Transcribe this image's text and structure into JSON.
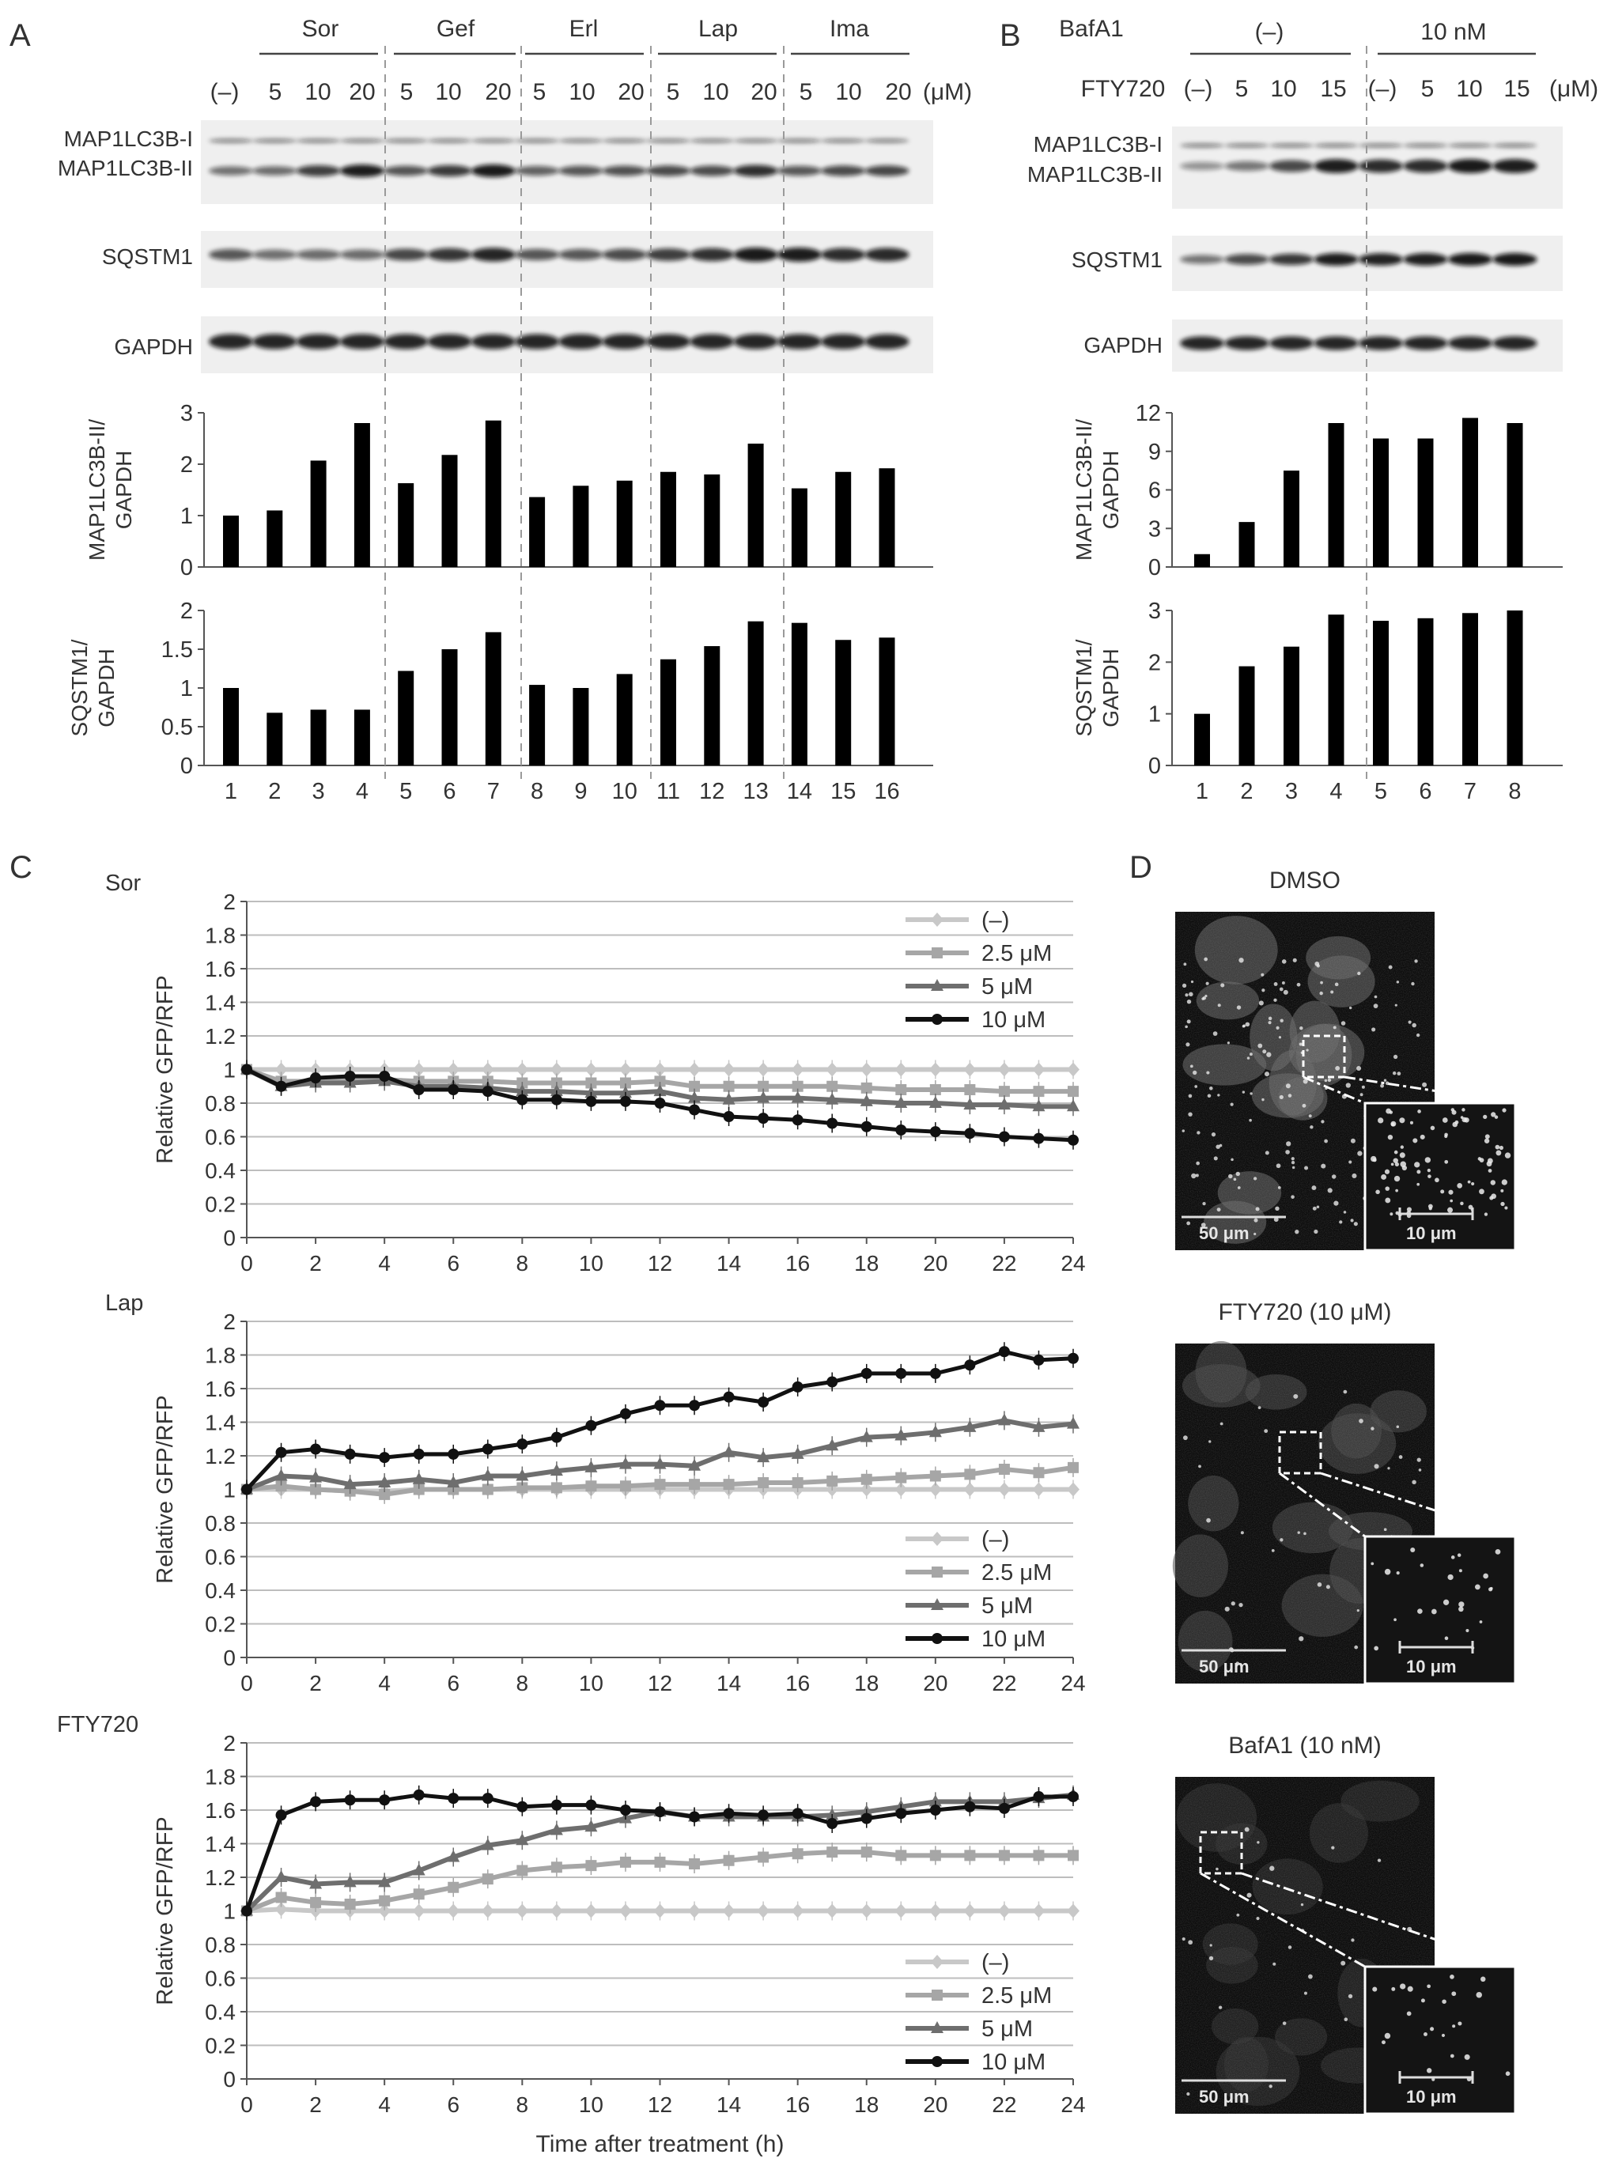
{
  "panels": {
    "A": {
      "letter": "A",
      "drug_groups": [
        {
          "name": "Sor",
          "doses": [
            "5",
            "10",
            "20"
          ]
        },
        {
          "name": "Gef",
          "doses": [
            "5",
            "10",
            "20"
          ]
        },
        {
          "name": "Erl",
          "doses": [
            "5",
            "10",
            "20"
          ]
        },
        {
          "name": "Lap",
          "doses": [
            "5",
            "10",
            "20"
          ]
        },
        {
          "name": "Ima",
          "doses": [
            "5",
            "10",
            "20"
          ]
        }
      ],
      "control_label": "(–)",
      "unit_label": "(μM)",
      "blot_labels": [
        "MAP1LC3B-I",
        "MAP1LC3B-II",
        "SQSTM1",
        "GAPDH"
      ],
      "lane_numbers": [
        "1",
        "2",
        "3",
        "4",
        "5",
        "6",
        "7",
        "8",
        "9",
        "10",
        "11",
        "12",
        "13",
        "14",
        "15",
        "16"
      ]
    },
    "B": {
      "letter": "B",
      "row1_label": "BafA1",
      "groups": [
        "(–)",
        "10 nM"
      ],
      "row2_label": "FTY720",
      "doses": [
        "(–)",
        "5",
        "10",
        "15",
        "(–)",
        "5",
        "10",
        "15"
      ],
      "unit_label": "(μM)",
      "blot_labels": [
        "MAP1LC3B-I",
        "MAP1LC3B-II",
        "SQSTM1",
        "GAPDH"
      ],
      "lane_numbers": [
        "1",
        "2",
        "3",
        "4",
        "5",
        "6",
        "7",
        "8"
      ]
    },
    "C": {
      "letter": "C",
      "legend": [
        "(–)",
        "2.5 μM",
        "5 μM",
        "10 μM"
      ],
      "xlabel": "Time after treatment (h)",
      "ylabel": "Relative GFP/RFP"
    },
    "D": {
      "letter": "D",
      "images": [
        {
          "title": "DMSO",
          "scale_main": "50 μm",
          "scale_inset": "10 μm"
        },
        {
          "title": "FTY720 (10 μM)",
          "scale_main": "50 μm",
          "scale_inset": "10 μm"
        },
        {
          "title": "BafA1 (10 nM)",
          "scale_main": "50 μm",
          "scale_inset": "10 μm"
        }
      ]
    }
  },
  "colors": {
    "series": [
      "#c8c8c8",
      "#a6a6a6",
      "#6e6e6e",
      "#111111"
    ],
    "bar": "#000000"
  },
  "chart_data": [
    {
      "type": "bar",
      "panel": "A",
      "ylabel": "MAP1LC3B-II/ GAPDH",
      "categories": [
        "1",
        "2",
        "3",
        "4",
        "5",
        "6",
        "7",
        "8",
        "9",
        "10",
        "11",
        "12",
        "13",
        "14",
        "15",
        "16"
      ],
      "values": [
        1.0,
        1.1,
        2.07,
        2.8,
        1.63,
        2.18,
        2.85,
        1.36,
        1.58,
        1.68,
        1.85,
        1.8,
        2.4,
        1.53,
        1.85,
        1.92
      ],
      "ylim": [
        0,
        3
      ],
      "yticks": [
        "0",
        "1",
        "2",
        "3"
      ]
    },
    {
      "type": "bar",
      "panel": "A",
      "ylabel": "SQSTM1/ GAPDH",
      "categories": [
        "1",
        "2",
        "3",
        "4",
        "5",
        "6",
        "7",
        "8",
        "9",
        "10",
        "11",
        "12",
        "13",
        "14",
        "15",
        "16"
      ],
      "values": [
        1.0,
        0.68,
        0.72,
        0.72,
        1.22,
        1.5,
        1.72,
        1.04,
        1.0,
        1.18,
        1.37,
        1.54,
        1.86,
        1.84,
        1.62,
        1.65
      ],
      "ylim": [
        0,
        2
      ],
      "yticks": [
        "0",
        "0.5",
        "1",
        "1.5",
        "2"
      ]
    },
    {
      "type": "bar",
      "panel": "B",
      "ylabel": "MAP1LC3B-II/ GAPDH",
      "categories": [
        "1",
        "2",
        "3",
        "4",
        "5",
        "6",
        "7",
        "8"
      ],
      "values": [
        1.0,
        3.5,
        7.5,
        11.2,
        10.0,
        10.0,
        11.6,
        11.2
      ],
      "ylim": [
        0,
        12
      ],
      "yticks": [
        "0",
        "3",
        "6",
        "9",
        "12"
      ]
    },
    {
      "type": "bar",
      "panel": "B",
      "ylabel": "SQSTM1/ GAPDH",
      "categories": [
        "1",
        "2",
        "3",
        "4",
        "5",
        "6",
        "7",
        "8"
      ],
      "values": [
        1.0,
        1.92,
        2.3,
        2.92,
        2.8,
        2.85,
        2.95,
        3.0
      ],
      "ylim": [
        0,
        3
      ],
      "yticks": [
        "0",
        "1",
        "2",
        "3"
      ]
    },
    {
      "type": "line",
      "panel": "C",
      "title": "Sor",
      "xlabel": "",
      "ylabel": "Relative GFP/RFP",
      "x": [
        0,
        1,
        2,
        3,
        4,
        5,
        6,
        7,
        8,
        9,
        10,
        11,
        12,
        13,
        14,
        15,
        16,
        17,
        18,
        19,
        20,
        21,
        22,
        23,
        24
      ],
      "xticks": [
        "0",
        "2",
        "4",
        "6",
        "8",
        "10",
        "12",
        "14",
        "16",
        "18",
        "20",
        "22",
        "24"
      ],
      "yticks": [
        "0",
        "0.2",
        "0.4",
        "0.6",
        "0.8",
        "1",
        "1.2",
        "1.4",
        "1.6",
        "1.8",
        "2"
      ],
      "ylim": [
        0,
        2
      ],
      "legend_position": "top-right",
      "series": [
        {
          "name": "(–)",
          "values": [
            1,
            1,
            1,
            1,
            1,
            1,
            1,
            1,
            1,
            1,
            1,
            1,
            1,
            1,
            1,
            1,
            1,
            1,
            1,
            1,
            1,
            1,
            1,
            1,
            1
          ]
        },
        {
          "name": "2.5 μM",
          "values": [
            1,
            0.93,
            0.93,
            0.94,
            0.94,
            0.93,
            0.93,
            0.93,
            0.92,
            0.92,
            0.92,
            0.92,
            0.93,
            0.9,
            0.9,
            0.9,
            0.9,
            0.9,
            0.89,
            0.88,
            0.88,
            0.88,
            0.87,
            0.87,
            0.87
          ]
        },
        {
          "name": "5 μM",
          "values": [
            1,
            0.9,
            0.92,
            0.92,
            0.93,
            0.9,
            0.9,
            0.89,
            0.87,
            0.87,
            0.86,
            0.86,
            0.87,
            0.83,
            0.82,
            0.83,
            0.83,
            0.82,
            0.81,
            0.8,
            0.8,
            0.79,
            0.79,
            0.78,
            0.78
          ]
        },
        {
          "name": "10 μM",
          "values": [
            1,
            0.9,
            0.95,
            0.96,
            0.96,
            0.88,
            0.88,
            0.87,
            0.82,
            0.82,
            0.81,
            0.81,
            0.8,
            0.76,
            0.72,
            0.71,
            0.7,
            0.68,
            0.66,
            0.64,
            0.63,
            0.62,
            0.6,
            0.59,
            0.58
          ]
        }
      ]
    },
    {
      "type": "line",
      "panel": "C",
      "title": "Lap",
      "xlabel": "",
      "ylabel": "Relative GFP/RFP",
      "x": [
        0,
        1,
        2,
        3,
        4,
        5,
        6,
        7,
        8,
        9,
        10,
        11,
        12,
        13,
        14,
        15,
        16,
        17,
        18,
        19,
        20,
        21,
        22,
        23,
        24
      ],
      "xticks": [
        "0",
        "2",
        "4",
        "6",
        "8",
        "10",
        "12",
        "14",
        "16",
        "18",
        "20",
        "22",
        "24"
      ],
      "yticks": [
        "0",
        "0.2",
        "0.4",
        "0.6",
        "0.8",
        "1",
        "1.2",
        "1.4",
        "1.6",
        "1.8",
        "2"
      ],
      "ylim": [
        0,
        2
      ],
      "legend_position": "bottom-right",
      "series": [
        {
          "name": "(–)",
          "values": [
            1,
            1.0,
            1.0,
            0.99,
            0.99,
            1.0,
            1.0,
            1.0,
            1.0,
            1.0,
            1.0,
            1.0,
            1.0,
            1.0,
            1.0,
            1.0,
            1.0,
            1.0,
            1.0,
            1.0,
            1.0,
            1.0,
            1.0,
            1.0,
            1.0
          ]
        },
        {
          "name": "2.5 μM",
          "values": [
            1,
            1.02,
            1.0,
            0.99,
            0.97,
            1.0,
            1.0,
            1.0,
            1.01,
            1.01,
            1.02,
            1.02,
            1.03,
            1.03,
            1.03,
            1.04,
            1.04,
            1.05,
            1.06,
            1.07,
            1.08,
            1.09,
            1.12,
            1.1,
            1.13
          ]
        },
        {
          "name": "5 μM",
          "values": [
            1,
            1.08,
            1.07,
            1.03,
            1.04,
            1.06,
            1.04,
            1.08,
            1.08,
            1.11,
            1.13,
            1.15,
            1.15,
            1.14,
            1.22,
            1.19,
            1.21,
            1.26,
            1.31,
            1.32,
            1.34,
            1.37,
            1.41,
            1.37,
            1.39
          ]
        },
        {
          "name": "10 μM",
          "values": [
            1,
            1.22,
            1.24,
            1.21,
            1.19,
            1.21,
            1.21,
            1.24,
            1.27,
            1.31,
            1.38,
            1.45,
            1.5,
            1.5,
            1.55,
            1.52,
            1.61,
            1.64,
            1.69,
            1.69,
            1.69,
            1.74,
            1.82,
            1.77,
            1.78
          ]
        }
      ]
    },
    {
      "type": "line",
      "panel": "C",
      "title": "FTY720",
      "xlabel": "Time after treatment (h)",
      "ylabel": "Relative GFP/RFP",
      "x": [
        0,
        1,
        2,
        3,
        4,
        5,
        6,
        7,
        8,
        9,
        10,
        11,
        12,
        13,
        14,
        15,
        16,
        17,
        18,
        19,
        20,
        21,
        22,
        23,
        24
      ],
      "xticks": [
        "0",
        "2",
        "4",
        "6",
        "8",
        "10",
        "12",
        "14",
        "16",
        "18",
        "20",
        "22",
        "24"
      ],
      "yticks": [
        "0",
        "0.2",
        "0.4",
        "0.6",
        "0.8",
        "1",
        "1.2",
        "1.4",
        "1.6",
        "1.8",
        "2"
      ],
      "ylim": [
        0,
        2
      ],
      "legend_position": "bottom-right",
      "series": [
        {
          "name": "(–)",
          "values": [
            1,
            1.01,
            1.0,
            1.0,
            1.0,
            1.0,
            1.0,
            1.0,
            1.0,
            1.0,
            1.0,
            1.0,
            1.0,
            1.0,
            1.0,
            1.0,
            1.0,
            1.0,
            1.0,
            1.0,
            1.0,
            1.0,
            1.0,
            1.0,
            1.0
          ]
        },
        {
          "name": "2.5 μM",
          "values": [
            1,
            1.08,
            1.05,
            1.04,
            1.06,
            1.1,
            1.14,
            1.19,
            1.24,
            1.26,
            1.27,
            1.29,
            1.29,
            1.28,
            1.3,
            1.32,
            1.34,
            1.35,
            1.35,
            1.33,
            1.33,
            1.33,
            1.33,
            1.33,
            1.33
          ]
        },
        {
          "name": "5 μM",
          "values": [
            1,
            1.2,
            1.16,
            1.17,
            1.17,
            1.24,
            1.32,
            1.39,
            1.42,
            1.48,
            1.5,
            1.55,
            1.59,
            1.56,
            1.56,
            1.56,
            1.56,
            1.57,
            1.59,
            1.62,
            1.65,
            1.65,
            1.65,
            1.67,
            1.69
          ]
        },
        {
          "name": "10 μM",
          "values": [
            1,
            1.57,
            1.65,
            1.66,
            1.66,
            1.69,
            1.67,
            1.67,
            1.62,
            1.63,
            1.63,
            1.6,
            1.59,
            1.56,
            1.58,
            1.57,
            1.58,
            1.52,
            1.55,
            1.58,
            1.6,
            1.62,
            1.61,
            1.68,
            1.68
          ]
        }
      ]
    }
  ]
}
